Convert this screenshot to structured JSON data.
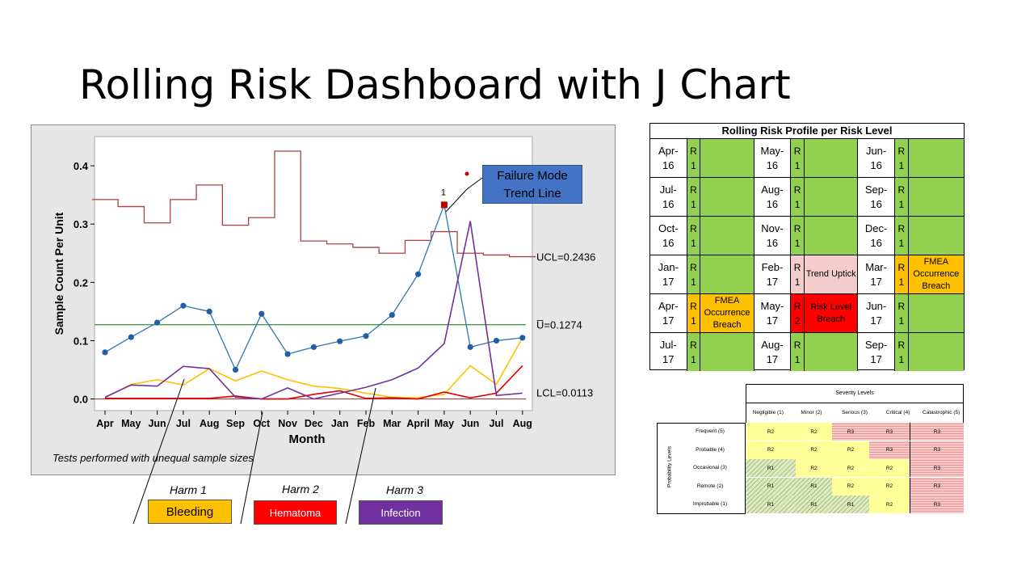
{
  "title": "Rolling Risk Dashboard with J Chart",
  "chart_data": {
    "type": "line",
    "ylabel": "Sample Count Per Unit",
    "xlabel": "Month",
    "ylim": [
      -0.02,
      0.45
    ],
    "yticks": [
      "0.0",
      "0.1",
      "0.2",
      "0.3",
      "0.4"
    ],
    "ytick_values": [
      0,
      0.1,
      0.2,
      0.3,
      0.4
    ],
    "categories": [
      "Apr",
      "May",
      "Jun",
      "Jul",
      "Aug",
      "Sep",
      "Oct",
      "Nov",
      "Dec",
      "Jan",
      "Feb",
      "Mar",
      "April",
      "May",
      "Jun",
      "Jul",
      "Aug"
    ],
    "point_label": "1",
    "ucl_label": "UCL=0.2436",
    "center_label": "U̅=0.1274",
    "lcl_label": "LCL=0.0113",
    "center_value": 0.1274,
    "ucl": [
      0.342,
      0.33,
      0.302,
      0.342,
      0.367,
      0.298,
      0.311,
      0.425,
      0.271,
      0.266,
      0.26,
      0.25,
      0.272,
      0.287,
      0.25,
      0.247,
      0.244
    ],
    "series": [
      {
        "values": [
          0.08,
          0.106,
          0.131,
          0.16,
          0.15,
          0.05,
          0.146,
          0.077,
          0.089,
          0.099,
          0.108,
          0.144,
          0.214,
          0.333,
          0.089,
          0.1,
          0.105
        ],
        "color": "#2e75b6"
      },
      {
        "values": [
          0.002,
          0.025,
          0.033,
          0.024,
          0.052,
          0.031,
          0.048,
          0.033,
          0.022,
          0.018,
          0.01,
          0.003,
          0.002,
          0.008,
          0.057,
          0.025,
          0.105
        ],
        "color": "#ffc000"
      },
      {
        "values": [
          0.001,
          0.001,
          0.001,
          0.001,
          0.001,
          0.005,
          0.0,
          0.0,
          0.008,
          0.014,
          0.001,
          0.002,
          0.0,
          0.012,
          0.002,
          0.01,
          0.057
        ],
        "color": "#e00000"
      },
      {
        "values": [
          0.003,
          0.024,
          0.022,
          0.056,
          0.052,
          0.003,
          0.0,
          0.019,
          0.0,
          0.01,
          0.02,
          0.033,
          0.053,
          0.095,
          0.305,
          0.006,
          0.01
        ],
        "color": "#7030a0"
      }
    ],
    "note": "Tests performed with unequal sample sizes"
  },
  "callout": {
    "line1": "Failure Mode",
    "line2": "Trend Line",
    "color": "#4472c4"
  },
  "harms": [
    {
      "label": "Harm 1",
      "name": "Bleeding",
      "color": "#ffc000"
    },
    {
      "label": "Harm 2",
      "name": "Hematoma",
      "color": "#ff0000"
    },
    {
      "label": "Harm 3",
      "name": "Infection",
      "color": "#7030a0"
    }
  ],
  "risk_profile": {
    "title": "Rolling Risk Profile per Risk Level",
    "rows": [
      [
        {
          "m1": "Apr-",
          "m2": "16",
          "l": "R",
          "d": "1",
          "n": "",
          "c": "#92d050"
        },
        {
          "m1": "May-",
          "m2": "16",
          "l": "R",
          "d": "1",
          "n": "",
          "c": "#92d050"
        },
        {
          "m1": "Jun-",
          "m2": "16",
          "l": "R",
          "d": "1",
          "n": "",
          "c": "#92d050"
        }
      ],
      [
        {
          "m1": "Jul-",
          "m2": "16",
          "l": "R",
          "d": "1",
          "n": "",
          "c": "#92d050"
        },
        {
          "m1": "Aug-",
          "m2": "16",
          "l": "R",
          "d": "1",
          "n": "",
          "c": "#92d050"
        },
        {
          "m1": "Sep-",
          "m2": "16",
          "l": "R",
          "d": "1",
          "n": "",
          "c": "#92d050"
        }
      ],
      [
        {
          "m1": "Oct-",
          "m2": "16",
          "l": "R",
          "d": "1",
          "n": "",
          "c": "#92d050"
        },
        {
          "m1": "Nov-",
          "m2": "16",
          "l": "R",
          "d": "1",
          "n": "",
          "c": "#92d050"
        },
        {
          "m1": "Dec-",
          "m2": "16",
          "l": "R",
          "d": "1",
          "n": "",
          "c": "#92d050"
        }
      ],
      [
        {
          "m1": "Jan-",
          "m2": "17",
          "l": "R",
          "d": "1",
          "n": "",
          "c": "#92d050"
        },
        {
          "m1": "Feb-",
          "m2": "17",
          "l": "R",
          "d": "1",
          "n": "Trend Uptick",
          "c": "#f4cccc"
        },
        {
          "m1": "Mar-",
          "m2": "17",
          "l": "R",
          "d": "1",
          "n": "FMEA Occurrence Breach",
          "c": "#ffc000"
        }
      ],
      [
        {
          "m1": "Apr-",
          "m2": "17",
          "l": "R",
          "d": "1",
          "n": "FMEA Occurrence Breach",
          "c": "#ffc000"
        },
        {
          "m1": "May-",
          "m2": "17",
          "l": "R",
          "d": "2",
          "n": "Risk Level Breach",
          "c": "#ff0000"
        },
        {
          "m1": "Jun-",
          "m2": "17",
          "l": "R",
          "d": "1",
          "n": "",
          "c": "#92d050"
        }
      ],
      [
        {
          "m1": "Jul-",
          "m2": "17",
          "l": "R",
          "d": "1",
          "n": "",
          "c": "#92d050"
        },
        {
          "m1": "Aug-",
          "m2": "17",
          "l": "R",
          "d": "1",
          "n": "",
          "c": "#92d050"
        },
        {
          "m1": "Sep-",
          "m2": "17",
          "l": "R",
          "d": "1",
          "n": "",
          "c": "#92d050"
        }
      ]
    ]
  },
  "severity_matrix": {
    "title": "Severity Levels",
    "probability_title": "Probability Levels",
    "columns": [
      "Negligible (1)",
      "Minor (2)",
      "Serious (3)",
      "Critical (4)",
      "Catastrophic (5)"
    ],
    "rows": [
      {
        "label": "Frequent (5)",
        "cells": [
          "R2",
          "R2",
          "R3",
          "R3",
          "R3"
        ]
      },
      {
        "label": "Probable (4)",
        "cells": [
          "R2",
          "R2",
          "R2",
          "R3",
          "R3"
        ]
      },
      {
        "label": "Occasional (3)",
        "cells": [
          "R1",
          "R2",
          "R2",
          "R2",
          "R3"
        ]
      },
      {
        "label": "Remote (2)",
        "cells": [
          "R1",
          "R1",
          "R2",
          "R2",
          "R3"
        ]
      },
      {
        "label": "Improbable (1)",
        "cells": [
          "R1",
          "R1",
          "R1",
          "R2",
          "R3"
        ]
      }
    ]
  }
}
